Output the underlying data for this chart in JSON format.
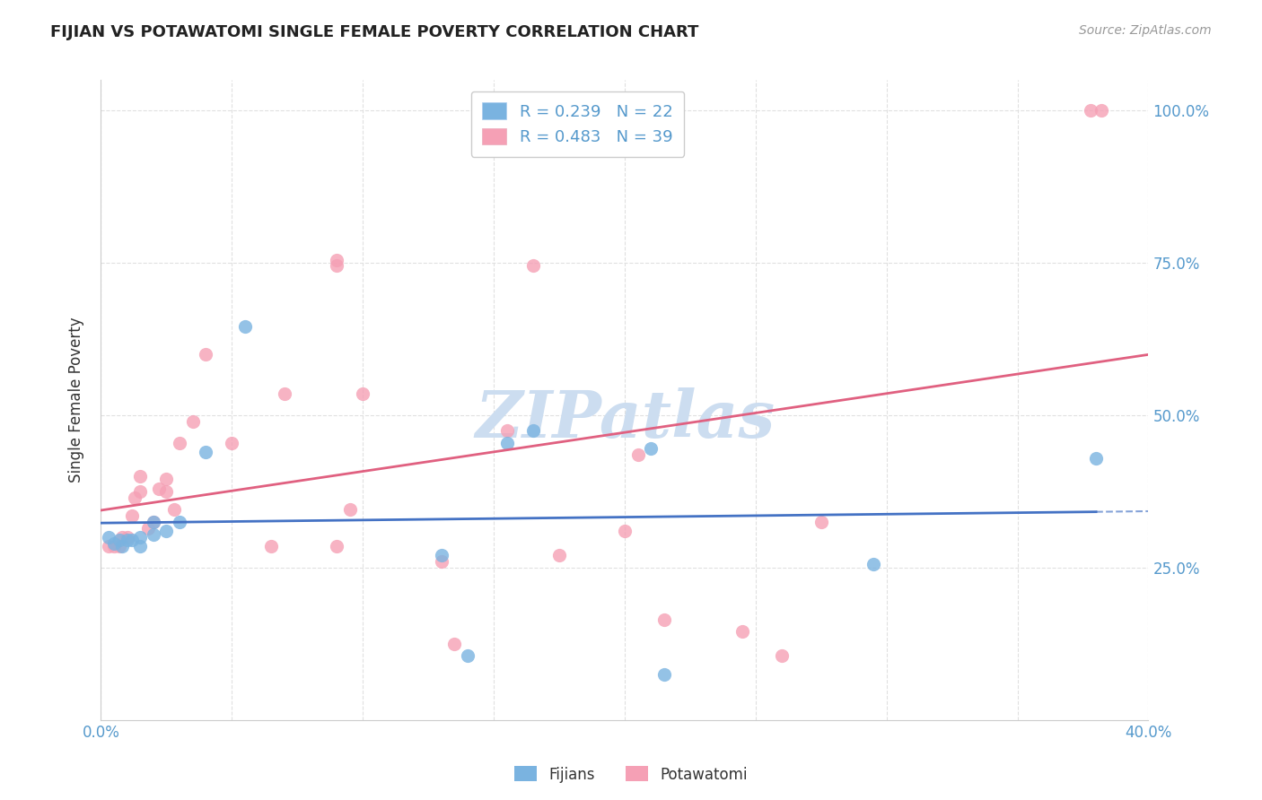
{
  "title": "FIJIAN VS POTAWATOMI SINGLE FEMALE POVERTY CORRELATION CHART",
  "source": "Source: ZipAtlas.com",
  "ylabel": "Single Female Poverty",
  "xlim": [
    0.0,
    0.4
  ],
  "ylim": [
    0.0,
    1.05
  ],
  "yticks": [
    0.25,
    0.5,
    0.75,
    1.0
  ],
  "ytick_labels": [
    "25.0%",
    "50.0%",
    "75.0%",
    "100.0%"
  ],
  "xtick_positions": [
    0.0,
    0.05,
    0.1,
    0.15,
    0.2,
    0.25,
    0.3,
    0.35,
    0.4
  ],
  "xtick_labels": [
    "0.0%",
    "",
    "",
    "",
    "",
    "",
    "",
    "",
    "40.0%"
  ],
  "background_color": "#ffffff",
  "grid_color": "#e0e0e0",
  "fijian_color": "#7ab3e0",
  "potawatomi_color": "#f5a0b5",
  "fijian_line_color": "#4472c4",
  "potawatomi_line_color": "#e06080",
  "fijian_R": 0.239,
  "fijian_N": 22,
  "potawatomi_R": 0.483,
  "potawatomi_N": 39,
  "watermark_color": "#ccddf0",
  "fijian_x": [
    0.003,
    0.005,
    0.007,
    0.008,
    0.01,
    0.012,
    0.015,
    0.015,
    0.02,
    0.02,
    0.025,
    0.03,
    0.04,
    0.055,
    0.13,
    0.14,
    0.155,
    0.165,
    0.21,
    0.215,
    0.295,
    0.38
  ],
  "fijian_y": [
    0.3,
    0.29,
    0.295,
    0.285,
    0.295,
    0.295,
    0.285,
    0.3,
    0.305,
    0.325,
    0.31,
    0.325,
    0.44,
    0.645,
    0.27,
    0.105,
    0.455,
    0.475,
    0.445,
    0.075,
    0.255,
    0.43
  ],
  "potawatomi_x": [
    0.003,
    0.005,
    0.007,
    0.008,
    0.01,
    0.012,
    0.013,
    0.015,
    0.015,
    0.018,
    0.02,
    0.022,
    0.025,
    0.025,
    0.028,
    0.03,
    0.035,
    0.04,
    0.05,
    0.065,
    0.07,
    0.09,
    0.09,
    0.09,
    0.095,
    0.1,
    0.13,
    0.135,
    0.155,
    0.165,
    0.175,
    0.2,
    0.205,
    0.215,
    0.245,
    0.26,
    0.275,
    0.378,
    0.382
  ],
  "potawatomi_y": [
    0.285,
    0.285,
    0.285,
    0.3,
    0.3,
    0.335,
    0.365,
    0.375,
    0.4,
    0.315,
    0.325,
    0.38,
    0.375,
    0.395,
    0.345,
    0.455,
    0.49,
    0.6,
    0.455,
    0.285,
    0.535,
    0.745,
    0.755,
    0.285,
    0.345,
    0.535,
    0.26,
    0.125,
    0.475,
    0.745,
    0.27,
    0.31,
    0.435,
    0.165,
    0.145,
    0.105,
    0.325,
    1.0,
    1.0
  ]
}
